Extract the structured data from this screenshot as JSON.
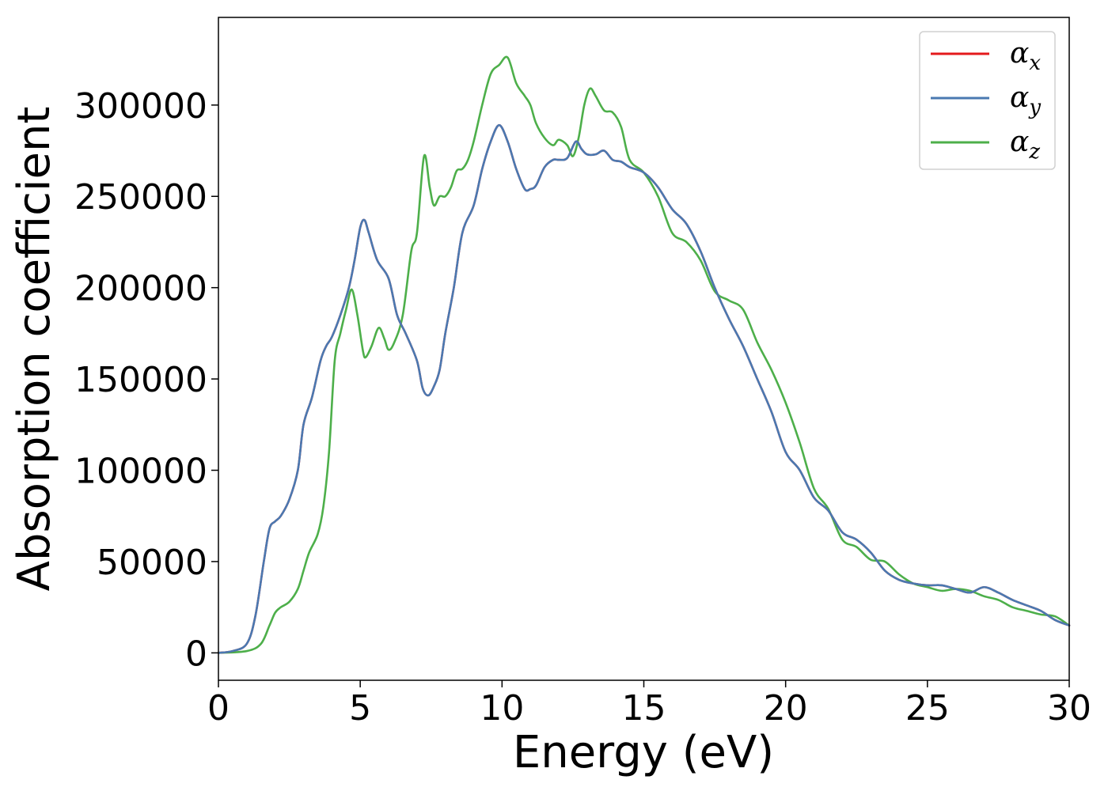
{
  "chart_data": {
    "type": "line",
    "title": "",
    "xlabel": "Energy (eV)",
    "ylabel": "Absorption coefficient",
    "xlim": [
      0,
      30
    ],
    "ylim": [
      -15000,
      348000
    ],
    "xticks": [
      0,
      5,
      10,
      15,
      20,
      25,
      30
    ],
    "xtick_labels": [
      "0",
      "5",
      "10",
      "15",
      "20",
      "25",
      "30"
    ],
    "yticks": [
      0,
      50000,
      100000,
      150000,
      200000,
      250000,
      300000
    ],
    "ytick_labels": [
      "0",
      "50000",
      "100000",
      "150000",
      "200000",
      "250000",
      "300000"
    ],
    "grid": false,
    "legend": {
      "position": "top-right",
      "entries": [
        {
          "base": "α",
          "sub": "x",
          "color": "#e41a1c"
        },
        {
          "base": "α",
          "sub": "y",
          "color": "#4a79b1"
        },
        {
          "base": "α",
          "sub": "z",
          "color": "#4daf4a"
        }
      ]
    },
    "series": [
      {
        "name": "αx",
        "color": "#e41a1c",
        "x": [
          0,
          0.5,
          1,
          1.3,
          1.6,
          1.8,
          2,
          2.2,
          2.5,
          2.8,
          3,
          3.3,
          3.6,
          3.8,
          4,
          4.3,
          4.6,
          4.8,
          5,
          5.15,
          5.3,
          5.6,
          6,
          6.3,
          6.6,
          7,
          7.2,
          7.4,
          7.6,
          7.8,
          8,
          8.3,
          8.6,
          9,
          9.3,
          9.6,
          9.9,
          10.2,
          10.5,
          10.8,
          11,
          11.2,
          11.5,
          11.8,
          12,
          12.3,
          12.6,
          12.8,
          13,
          13.3,
          13.6,
          13.9,
          14.2,
          14.5,
          15,
          15.5,
          16,
          16.5,
          17,
          17.5,
          18,
          18.5,
          19,
          19.5,
          20,
          20.5,
          21,
          21.5,
          22,
          22.5,
          23,
          23.5,
          24,
          24.5,
          25,
          25.5,
          26,
          26.5,
          27,
          27.5,
          28,
          28.5,
          29,
          29.5,
          30
        ],
        "y": [
          0,
          1000,
          5000,
          20000,
          50000,
          68000,
          72000,
          75000,
          84000,
          100000,
          125000,
          140000,
          160000,
          168000,
          173000,
          185000,
          200000,
          215000,
          233000,
          237000,
          230000,
          215000,
          205000,
          185000,
          175000,
          160000,
          145000,
          141000,
          146000,
          155000,
          175000,
          200000,
          230000,
          245000,
          265000,
          280000,
          289000,
          280000,
          265000,
          254000,
          254000,
          256000,
          266000,
          270000,
          270000,
          271000,
          280000,
          276000,
          273000,
          273000,
          275000,
          270000,
          269000,
          266000,
          263000,
          255000,
          243000,
          235000,
          220000,
          200000,
          183000,
          168000,
          150000,
          132000,
          110000,
          100000,
          85000,
          78000,
          66000,
          62000,
          55000,
          45000,
          40000,
          38000,
          37000,
          37000,
          35000,
          33000,
          36000,
          33000,
          29000,
          26000,
          23000,
          18000,
          15000
        ]
      },
      {
        "name": "αy",
        "color": "#4a79b1",
        "x": [
          0,
          0.5,
          1,
          1.3,
          1.6,
          1.8,
          2,
          2.2,
          2.5,
          2.8,
          3,
          3.3,
          3.6,
          3.8,
          4,
          4.3,
          4.6,
          4.8,
          5,
          5.15,
          5.3,
          5.6,
          6,
          6.3,
          6.6,
          7,
          7.2,
          7.4,
          7.6,
          7.8,
          8,
          8.3,
          8.6,
          9,
          9.3,
          9.6,
          9.9,
          10.2,
          10.5,
          10.8,
          11,
          11.2,
          11.5,
          11.8,
          12,
          12.3,
          12.6,
          12.8,
          13,
          13.3,
          13.6,
          13.9,
          14.2,
          14.5,
          15,
          15.5,
          16,
          16.5,
          17,
          17.5,
          18,
          18.5,
          19,
          19.5,
          20,
          20.5,
          21,
          21.5,
          22,
          22.5,
          23,
          23.5,
          24,
          24.5,
          25,
          25.5,
          26,
          26.5,
          27,
          27.5,
          28,
          28.5,
          29,
          29.5,
          30
        ],
        "y": [
          0,
          1000,
          5000,
          20000,
          50000,
          68000,
          72000,
          75000,
          84000,
          100000,
          125000,
          140000,
          160000,
          168000,
          173000,
          185000,
          200000,
          215000,
          233000,
          237000,
          230000,
          215000,
          205000,
          185000,
          175000,
          160000,
          145000,
          141000,
          146000,
          155000,
          175000,
          200000,
          230000,
          245000,
          265000,
          280000,
          289000,
          280000,
          265000,
          254000,
          254000,
          256000,
          266000,
          270000,
          270000,
          271000,
          280000,
          276000,
          273000,
          273000,
          275000,
          270000,
          269000,
          266000,
          263000,
          255000,
          243000,
          235000,
          220000,
          200000,
          183000,
          168000,
          150000,
          132000,
          110000,
          100000,
          85000,
          78000,
          66000,
          62000,
          55000,
          45000,
          40000,
          38000,
          37000,
          37000,
          35000,
          33000,
          36000,
          33000,
          29000,
          26000,
          23000,
          18000,
          15000
        ]
      },
      {
        "name": "αz",
        "color": "#4daf4a",
        "x": [
          0,
          1,
          1.5,
          1.8,
          2,
          2.2,
          2.5,
          2.8,
          3,
          3.2,
          3.5,
          3.7,
          3.9,
          4.1,
          4.3,
          4.5,
          4.7,
          4.9,
          5.1,
          5.2,
          5.4,
          5.65,
          5.85,
          6,
          6.2,
          6.5,
          6.8,
          7,
          7.25,
          7.45,
          7.6,
          7.8,
          8,
          8.2,
          8.4,
          8.6,
          8.8,
          9,
          9.3,
          9.6,
          9.9,
          10.2,
          10.5,
          10.8,
          11,
          11.2,
          11.5,
          11.8,
          12,
          12.3,
          12.5,
          12.7,
          12.9,
          13.1,
          13.3,
          13.6,
          13.9,
          14.2,
          14.5,
          15,
          15.5,
          16,
          16.5,
          17,
          17.5,
          18,
          18.5,
          19,
          19.5,
          20,
          20.5,
          21,
          21.5,
          22,
          22.5,
          23,
          23.5,
          24,
          24.5,
          25,
          25.5,
          26,
          26.5,
          27,
          27.5,
          28,
          28.5,
          29,
          29.5,
          30
        ],
        "y": [
          0,
          1000,
          5000,
          15000,
          22000,
          25000,
          28000,
          35000,
          45000,
          55000,
          65000,
          80000,
          110000,
          160000,
          175000,
          188000,
          199000,
          185000,
          165000,
          162000,
          168000,
          178000,
          172000,
          166000,
          170000,
          185000,
          220000,
          230000,
          272000,
          255000,
          245000,
          250000,
          250000,
          255000,
          264000,
          265000,
          270000,
          280000,
          300000,
          317000,
          322000,
          326000,
          312000,
          305000,
          300000,
          290000,
          282000,
          278000,
          281000,
          278000,
          272000,
          282000,
          300000,
          309000,
          305000,
          297000,
          296000,
          288000,
          270000,
          263000,
          250000,
          230000,
          225000,
          215000,
          198000,
          193000,
          188000,
          170000,
          155000,
          137000,
          115000,
          90000,
          79000,
          62000,
          58000,
          51000,
          50000,
          43000,
          38000,
          36000,
          34000,
          35000,
          34000,
          31000,
          29000,
          25000,
          23000,
          21000,
          20000,
          15000
        ]
      }
    ]
  }
}
